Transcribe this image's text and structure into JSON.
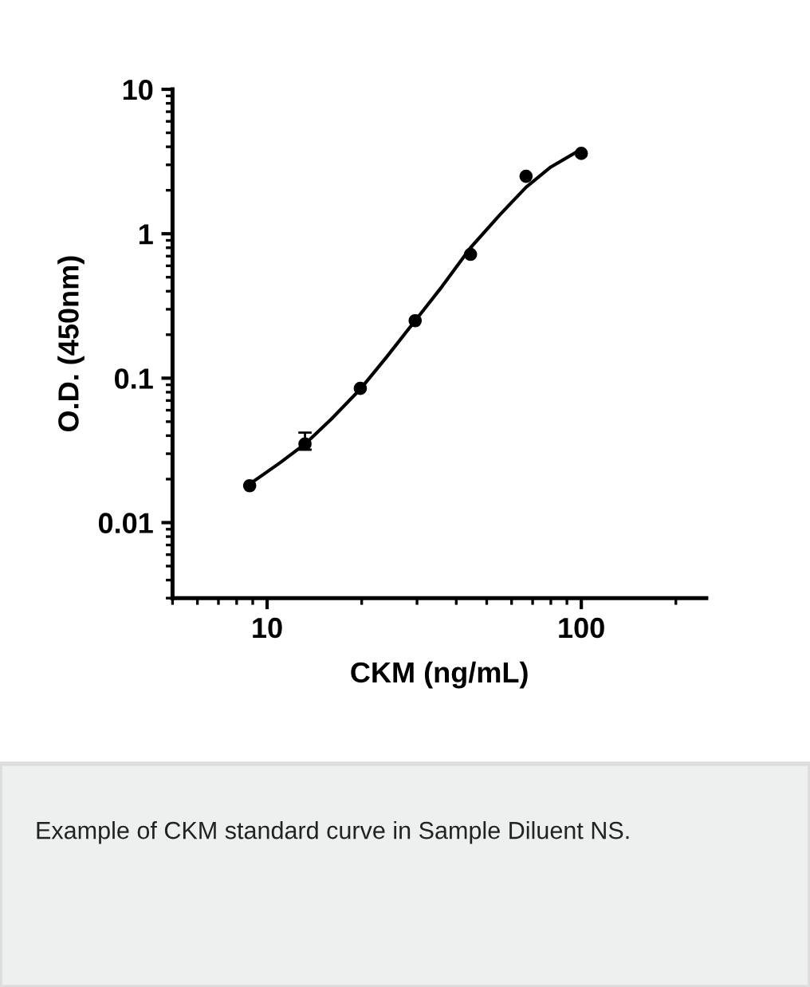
{
  "chart_data": {
    "type": "scatter",
    "xlabel": "CKM (ng/mL)",
    "ylabel": "O.D. (450nm)",
    "log": "xy",
    "x": [
      8.8,
      13.2,
      19.8,
      29.6,
      44.4,
      66.7,
      100
    ],
    "series": [
      {
        "color": "#000000",
        "marker": "circle",
        "values": [
          0.018,
          0.035,
          0.085,
          0.25,
          0.72,
          2.5,
          3.6
        ],
        "errors": [
          null,
          [
            0.032,
            0.042
          ],
          null,
          null,
          null,
          null,
          null
        ]
      },
      {
        "type": "line",
        "color": "#000000",
        "line_style": "solid",
        "x": [
          8.8,
          11,
          13.2,
          16,
          19.8,
          24,
          29.6,
          36,
          44.4,
          55,
          66.7,
          80,
          100
        ],
        "values": [
          0.0185,
          0.026,
          0.035,
          0.052,
          0.084,
          0.14,
          0.25,
          0.43,
          0.8,
          1.35,
          2.1,
          2.9,
          3.85
        ]
      }
    ],
    "xlim": [
      5,
      250
    ],
    "xticks": [
      10,
      100
    ],
    "ylim": [
      0.003,
      10
    ],
    "yticks": [
      0.01,
      0.1,
      1,
      10
    ],
    "grid": false,
    "legend": false,
    "annotations": [
      "Example of CKM standard curve in Sample Diluent NS."
    ]
  }
}
